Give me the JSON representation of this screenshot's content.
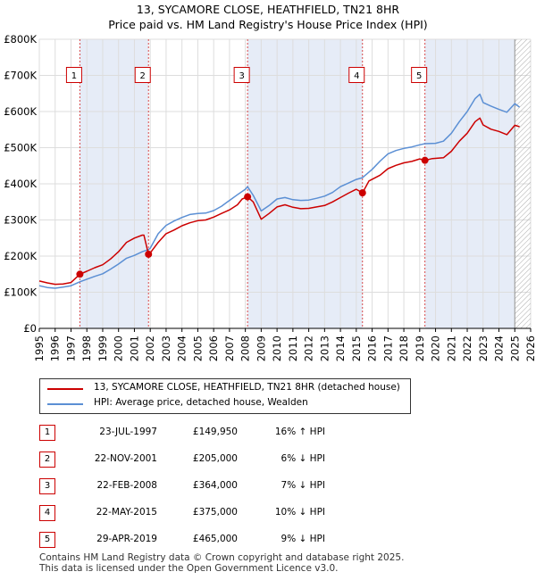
{
  "title_line1": "13, SYCAMORE CLOSE, HEATHFIELD, TN21 8HR",
  "title_line2": "Price paid vs. HM Land Registry's House Price Index (HPI)",
  "colors": {
    "property": "#cc0000",
    "hpi": "#5b8fd4",
    "shade": "#e6ecf7",
    "grid": "#dddddd",
    "hatch": "#999999"
  },
  "chart_data": {
    "type": "line",
    "x_range": [
      1995,
      2026
    ],
    "ylim": [
      0,
      800000
    ],
    "y_ticks": [
      0,
      100000,
      200000,
      300000,
      400000,
      500000,
      600000,
      700000,
      800000
    ],
    "y_tick_labels": [
      "£0",
      "£100K",
      "£200K",
      "£300K",
      "£400K",
      "£500K",
      "£600K",
      "£700K",
      "£800K"
    ],
    "x_ticks": [
      1995,
      1996,
      1997,
      1998,
      1999,
      2000,
      2001,
      2002,
      2003,
      2004,
      2005,
      2006,
      2007,
      2008,
      2009,
      2010,
      2011,
      2012,
      2013,
      2014,
      2015,
      2016,
      2017,
      2018,
      2019,
      2020,
      2021,
      2022,
      2023,
      2024,
      2025,
      2026
    ],
    "x_tick_labels": [
      "1995",
      "1996",
      "1997",
      "1998",
      "1999",
      "2000",
      "2001",
      "2002",
      "2003",
      "2004",
      "2005",
      "2006",
      "2007",
      "2008",
      "2009",
      "2010",
      "2011",
      "2012",
      "2013",
      "2014",
      "2015",
      "2016",
      "2017",
      "2018",
      "2019",
      "2020",
      "2021",
      "2022",
      "2023",
      "2024",
      "2025",
      "2026"
    ],
    "hatch_from": 2025.0,
    "shaded_spans": [
      [
        1997.56,
        2001.89
      ],
      [
        2008.14,
        2015.39
      ],
      [
        2019.33,
        2025.0
      ]
    ],
    "series": [
      {
        "name": "13, SYCAMORE CLOSE, HEATHFIELD, TN21 8HR (detached house)",
        "points": [
          [
            1995.0,
            131000
          ],
          [
            1995.5,
            126000
          ],
          [
            1996.0,
            122000
          ],
          [
            1996.5,
            123000
          ],
          [
            1997.0,
            127000
          ],
          [
            1997.56,
            149950
          ],
          [
            1998.0,
            158000
          ],
          [
            1998.5,
            168000
          ],
          [
            1999.0,
            176000
          ],
          [
            1999.5,
            192000
          ],
          [
            2000.0,
            212000
          ],
          [
            2000.5,
            238000
          ],
          [
            2001.0,
            250000
          ],
          [
            2001.5,
            258000
          ],
          [
            2001.6,
            258000
          ],
          [
            2001.89,
            205000
          ],
          [
            2002.0,
            209000
          ],
          [
            2002.5,
            238000
          ],
          [
            2003.0,
            262000
          ],
          [
            2003.5,
            272000
          ],
          [
            2004.0,
            284000
          ],
          [
            2004.5,
            292000
          ],
          [
            2005.0,
            298000
          ],
          [
            2005.5,
            300000
          ],
          [
            2006.0,
            308000
          ],
          [
            2006.5,
            318000
          ],
          [
            2007.0,
            328000
          ],
          [
            2007.5,
            342000
          ],
          [
            2007.8,
            358000
          ],
          [
            2008.14,
            364000
          ],
          [
            2008.5,
            350000
          ],
          [
            2009.0,
            302000
          ],
          [
            2009.5,
            318000
          ],
          [
            2010.0,
            336000
          ],
          [
            2010.5,
            342000
          ],
          [
            2011.0,
            335000
          ],
          [
            2011.5,
            331000
          ],
          [
            2012.0,
            332000
          ],
          [
            2012.5,
            336000
          ],
          [
            2013.0,
            340000
          ],
          [
            2013.5,
            350000
          ],
          [
            2014.0,
            362000
          ],
          [
            2014.5,
            374000
          ],
          [
            2015.0,
            385000
          ],
          [
            2015.39,
            375000
          ],
          [
            2015.8,
            408000
          ],
          [
            2016.5,
            424000
          ],
          [
            2017.0,
            442000
          ],
          [
            2017.5,
            451000
          ],
          [
            2018.0,
            458000
          ],
          [
            2018.5,
            462000
          ],
          [
            2019.0,
            469000
          ],
          [
            2019.33,
            465000
          ],
          [
            2019.8,
            470000
          ],
          [
            2020.5,
            472000
          ],
          [
            2021.0,
            490000
          ],
          [
            2021.5,
            518000
          ],
          [
            2022.0,
            540000
          ],
          [
            2022.5,
            572000
          ],
          [
            2022.8,
            582000
          ],
          [
            2023.0,
            563000
          ],
          [
            2023.5,
            551000
          ],
          [
            2024.0,
            545000
          ],
          [
            2024.5,
            536000
          ],
          [
            2025.0,
            562000
          ],
          [
            2025.3,
            558000
          ]
        ]
      },
      {
        "name": "HPI: Average price, detached house, Wealden",
        "points": [
          [
            1995.0,
            118000
          ],
          [
            1995.5,
            113000
          ],
          [
            1996.0,
            111000
          ],
          [
            1996.5,
            114000
          ],
          [
            1997.0,
            118000
          ],
          [
            1997.56,
            129000
          ],
          [
            1998.0,
            136000
          ],
          [
            1998.5,
            144000
          ],
          [
            1999.0,
            151000
          ],
          [
            1999.5,
            164000
          ],
          [
            2000.0,
            178000
          ],
          [
            2000.5,
            194000
          ],
          [
            2001.0,
            202000
          ],
          [
            2001.5,
            212000
          ],
          [
            2001.89,
            218000
          ],
          [
            2002.0,
            222000
          ],
          [
            2002.5,
            262000
          ],
          [
            2003.0,
            285000
          ],
          [
            2003.5,
            297000
          ],
          [
            2004.0,
            307000
          ],
          [
            2004.5,
            315000
          ],
          [
            2005.0,
            318000
          ],
          [
            2005.5,
            319000
          ],
          [
            2006.0,
            326000
          ],
          [
            2006.5,
            338000
          ],
          [
            2007.0,
            354000
          ],
          [
            2007.5,
            370000
          ],
          [
            2008.0,
            385000
          ],
          [
            2008.14,
            392000
          ],
          [
            2008.5,
            368000
          ],
          [
            2009.0,
            325000
          ],
          [
            2009.5,
            340000
          ],
          [
            2010.0,
            358000
          ],
          [
            2010.5,
            362000
          ],
          [
            2011.0,
            356000
          ],
          [
            2011.5,
            354000
          ],
          [
            2012.0,
            355000
          ],
          [
            2012.5,
            360000
          ],
          [
            2013.0,
            366000
          ],
          [
            2013.5,
            376000
          ],
          [
            2014.0,
            392000
          ],
          [
            2014.5,
            402000
          ],
          [
            2015.0,
            412000
          ],
          [
            2015.39,
            417000
          ],
          [
            2016.0,
            440000
          ],
          [
            2016.5,
            463000
          ],
          [
            2017.0,
            483000
          ],
          [
            2017.5,
            492000
          ],
          [
            2018.0,
            498000
          ],
          [
            2018.5,
            502000
          ],
          [
            2019.0,
            508000
          ],
          [
            2019.33,
            511000
          ],
          [
            2020.0,
            512000
          ],
          [
            2020.5,
            518000
          ],
          [
            2021.0,
            540000
          ],
          [
            2021.5,
            572000
          ],
          [
            2022.0,
            600000
          ],
          [
            2022.5,
            636000
          ],
          [
            2022.8,
            648000
          ],
          [
            2023.0,
            625000
          ],
          [
            2023.5,
            615000
          ],
          [
            2024.0,
            606000
          ],
          [
            2024.5,
            598000
          ],
          [
            2025.0,
            622000
          ],
          [
            2025.3,
            612000
          ]
        ]
      }
    ],
    "sales": [
      {
        "label": "1",
        "x": 1997.56,
        "y": 149950
      },
      {
        "label": "2",
        "x": 2001.89,
        "y": 205000
      },
      {
        "label": "3",
        "x": 2008.14,
        "y": 364000
      },
      {
        "label": "4",
        "x": 2015.39,
        "y": 375000
      },
      {
        "label": "5",
        "x": 2019.33,
        "y": 465000
      }
    ],
    "marker_box_value": 700000
  },
  "legend": {
    "property": "13, SYCAMORE CLOSE, HEATHFIELD, TN21 8HR (detached house)",
    "hpi": "HPI: Average price, detached house, Wealden"
  },
  "transactions": [
    {
      "num": "1",
      "date": "23-JUL-1997",
      "price": "£149,950",
      "hpi": "16% ↑ HPI"
    },
    {
      "num": "2",
      "date": "22-NOV-2001",
      "price": "£205,000",
      "hpi": "6% ↓ HPI"
    },
    {
      "num": "3",
      "date": "22-FEB-2008",
      "price": "£364,000",
      "hpi": "7% ↓ HPI"
    },
    {
      "num": "4",
      "date": "22-MAY-2015",
      "price": "£375,000",
      "hpi": "10% ↓ HPI"
    },
    {
      "num": "5",
      "date": "29-APR-2019",
      "price": "£465,000",
      "hpi": "9% ↓ HPI"
    }
  ],
  "footer": {
    "line1": "Contains HM Land Registry data © Crown copyright and database right 2025.",
    "line2": "This data is licensed under the Open Government Licence v3.0."
  }
}
